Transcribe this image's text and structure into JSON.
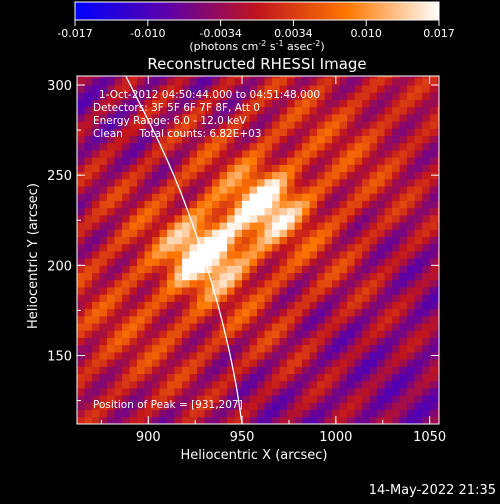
{
  "colorbar": {
    "ticks": [
      "-0.017",
      "-0.010",
      "-0.0034",
      "0.0034",
      "0.010",
      "0.017"
    ],
    "units_prefix": "(photons cm",
    "units_sup1": "-2",
    "units_mid": " s",
    "units_sup2": "-1",
    "units_mid2": " asec",
    "units_sup3": "-2",
    "units_suffix": ")"
  },
  "annotations": {
    "time_range": "1-Oct-2012 04:50:44.000 to 04:51:48.000",
    "detectors": "Detectors: 3F 5F 6F 7F 8F, Att 0",
    "energy": "Energy Range: 6.0 - 12.0 keV",
    "clean": "Clean     Total counts: 6.82E+03",
    "peak": "Position of Peak = [931,207]"
  },
  "footer": {
    "date": "14-May-2022 21:35"
  },
  "chart_data": {
    "type": "heatmap",
    "title": "Reconstructed RHESSI Image",
    "xlabel": "Heliocentric X (arcsec)",
    "ylabel": "Heliocentric Y (arcsec)",
    "xlim": [
      862,
      1055
    ],
    "ylim": [
      112,
      305
    ],
    "xticks": [
      "900",
      "950",
      "1000",
      "1050"
    ],
    "yticks": [
      "150",
      "200",
      "250",
      "300"
    ],
    "color_range": [
      -0.017,
      0.017
    ],
    "peak": [
      931,
      207
    ],
    "sources": [
      {
        "x": 931,
        "y": 207
      },
      {
        "x": 962,
        "y": 233
      }
    ],
    "limb_curve": [
      [
        888,
        305
      ],
      [
        910,
        260
      ],
      [
        925,
        220
      ],
      [
        937,
        180
      ],
      [
        946,
        140
      ],
      [
        950,
        112
      ]
    ],
    "colors": {
      "low": "#0000ff",
      "mid_low": "#5a00aa",
      "mid": "#c0141e",
      "mid_high": "#ff7800",
      "high": "#ffffff"
    }
  }
}
